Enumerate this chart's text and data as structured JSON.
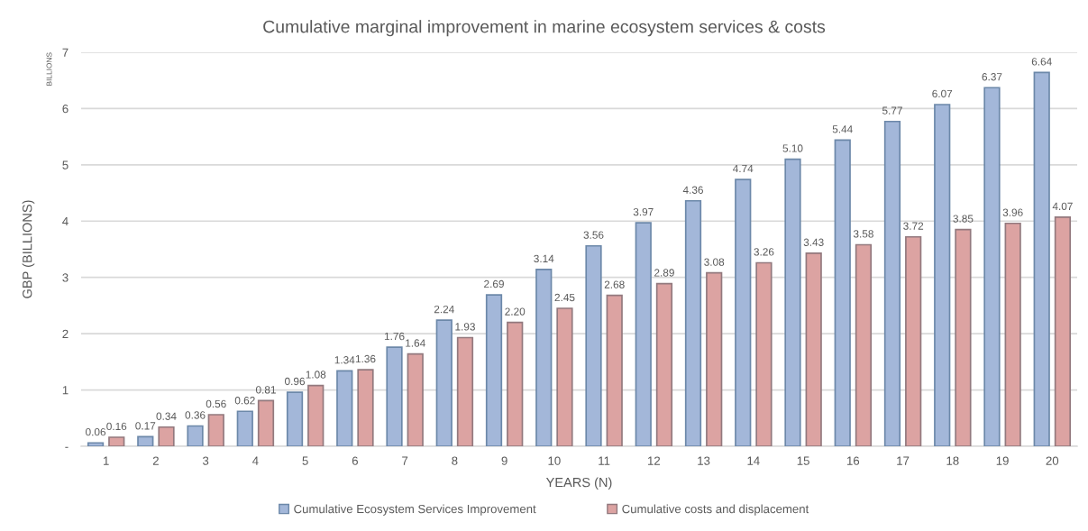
{
  "chart_data": {
    "type": "bar",
    "title": "Cumulative marginal improvement in marine ecosystem services & costs",
    "xlabel": "YEARS (N)",
    "ylabel": "GBP (BILLIONS)",
    "annotations": [
      "BILLIONS"
    ],
    "categories": [
      "1",
      "2",
      "3",
      "4",
      "5",
      "6",
      "7",
      "8",
      "9",
      "10",
      "11",
      "12",
      "13",
      "14",
      "15",
      "16",
      "17",
      "18",
      "19",
      "20"
    ],
    "series": [
      {
        "name": "Cumulative Ecosystem Services Improvement",
        "color": "#a3b7d9",
        "values": [
          0.06,
          0.17,
          0.36,
          0.62,
          0.96,
          1.34,
          1.76,
          2.24,
          2.69,
          3.14,
          3.56,
          3.97,
          4.36,
          4.74,
          5.1,
          5.44,
          5.77,
          6.07,
          6.37,
          6.64
        ],
        "value_labels": [
          "0.06",
          "0.17",
          "0.36",
          "0.62",
          "0.96",
          "1.34",
          "1.76",
          "2.24",
          "2.69",
          "3.14",
          "3.56",
          "3.97",
          "4.36",
          "4.74",
          "5.10",
          "5.44",
          "5.77",
          "6.07",
          "6.37",
          "6.64"
        ]
      },
      {
        "name": "Cumulative costs and displacement",
        "color": "#dca3a2",
        "values": [
          0.16,
          0.34,
          0.56,
          0.81,
          1.08,
          1.36,
          1.64,
          1.93,
          2.2,
          2.45,
          2.68,
          2.89,
          3.08,
          3.26,
          3.43,
          3.58,
          3.72,
          3.85,
          3.96,
          4.07
        ],
        "value_labels": [
          "0.16",
          "0.34",
          "0.56",
          "0.81",
          "1.08",
          "1.36",
          "1.64",
          "1.93",
          "2.20",
          "2.45",
          "2.68",
          "2.89",
          "3.08",
          "3.26",
          "3.43",
          "3.58",
          "3.72",
          "3.85",
          "3.96",
          "4.07"
        ]
      }
    ],
    "ylim": [
      0,
      7
    ],
    "yticks": [
      {
        "value": 0,
        "label": "-"
      },
      1,
      2,
      3,
      4,
      5,
      6,
      7
    ],
    "grid": "y",
    "legend": "bottom"
  }
}
